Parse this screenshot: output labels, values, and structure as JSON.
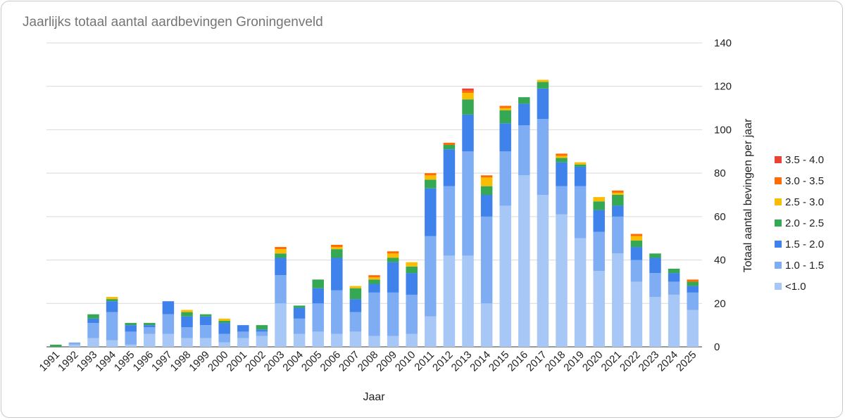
{
  "chart_data": {
    "type": "bar",
    "stacked": true,
    "title": "Jaarlijks totaal aantal aardbevingen Groningenveld",
    "xlabel": "Jaar",
    "ylabel": "Totaal aantal bevingen per jaar",
    "ylim": [
      0,
      140
    ],
    "yticks": [
      "0",
      "20",
      "40",
      "60",
      "80",
      "100",
      "120",
      "140"
    ],
    "y_axis_side": "right",
    "grid": true,
    "legend_position": "right",
    "categories": [
      "1991",
      "1992",
      "1993",
      "1994",
      "1995",
      "1996",
      "1997",
      "1998",
      "1999",
      "2000",
      "2001",
      "2002",
      "2003",
      "2004",
      "2005",
      "2006",
      "2007",
      "2008",
      "2009",
      "2010",
      "2011",
      "2012",
      "2013",
      "2014",
      "2015",
      "2016",
      "2017",
      "2018",
      "2019",
      "2020",
      "2021",
      "2022",
      "2023",
      "2024",
      "2025"
    ],
    "series": [
      {
        "name": "<1.0",
        "color": "#a7c7f7",
        "values": [
          0,
          1,
          4,
          3,
          1,
          6,
          6,
          4,
          4,
          2,
          4,
          5,
          20,
          6,
          7,
          6,
          7,
          5,
          5,
          6,
          14,
          42,
          42,
          20,
          65,
          79,
          70,
          61,
          50,
          35,
          43,
          30,
          23,
          24,
          17
        ]
      },
      {
        "name": "1.0 - 1.5",
        "color": "#7fadf3",
        "values": [
          0,
          1,
          7,
          13,
          6,
          3,
          9,
          5,
          6,
          4,
          3,
          2,
          13,
          7,
          13,
          20,
          9,
          20,
          20,
          18,
          37,
          32,
          48,
          40,
          25,
          23,
          35,
          13,
          24,
          18,
          17,
          10,
          11,
          6,
          8
        ]
      },
      {
        "name": "1.5 - 2.0",
        "color": "#3f82ec",
        "values": [
          0,
          0,
          2,
          5,
          3,
          1,
          6,
          5,
          4,
          5,
          3,
          1,
          8,
          5,
          7,
          15,
          6,
          4,
          14,
          10,
          22,
          17,
          17,
          10,
          13,
          10,
          14,
          11,
          9,
          10,
          5,
          6,
          7,
          4,
          3
        ]
      },
      {
        "name": "2.0 - 2.5",
        "color": "#34a853",
        "values": [
          1,
          0,
          2,
          1,
          1,
          1,
          0,
          2,
          1,
          1,
          0,
          2,
          2,
          1,
          4,
          4,
          5,
          2,
          2,
          3,
          4,
          2,
          7,
          4,
          6,
          3,
          3,
          2,
          1,
          4,
          5,
          3,
          2,
          2,
          2
        ]
      },
      {
        "name": "2.5 - 3.0",
        "color": "#fbbc04",
        "values": [
          0,
          0,
          0,
          1,
          0,
          0,
          0,
          1,
          0,
          1,
          0,
          0,
          2,
          0,
          0,
          1,
          1,
          1,
          2,
          2,
          2,
          0,
          3,
          4,
          1,
          0,
          1,
          1,
          1,
          2,
          1,
          2,
          0,
          0,
          0
        ]
      },
      {
        "name": "3.0 - 3.5",
        "color": "#ff6d01",
        "values": [
          0,
          0,
          0,
          0,
          0,
          0,
          0,
          0,
          0,
          0,
          0,
          0,
          1,
          0,
          0,
          1,
          0,
          1,
          1,
          0,
          1,
          1,
          1,
          1,
          1,
          0,
          0,
          1,
          0,
          0,
          1,
          1,
          0,
          0,
          1
        ]
      },
      {
        "name": "3.5 - 4.0",
        "color": "#ea4335",
        "values": [
          0,
          0,
          0,
          0,
          0,
          0,
          0,
          0,
          0,
          0,
          0,
          0,
          0,
          0,
          0,
          0,
          0,
          0,
          0,
          0,
          0,
          0,
          1,
          0,
          0,
          0,
          0,
          0,
          0,
          0,
          0,
          0,
          0,
          0,
          0
        ]
      }
    ]
  }
}
